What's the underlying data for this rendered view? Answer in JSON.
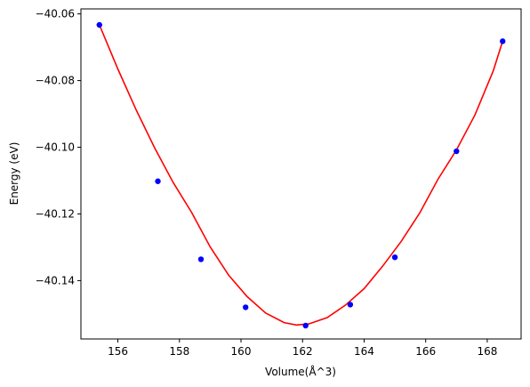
{
  "chart_data": {
    "type": "scatter",
    "xlabel": "Volume(Å^3)",
    "ylabel": "Energy (eV)",
    "xlim": [
      154.8,
      169.1
    ],
    "ylim": [
      -40.1575,
      -40.0585
    ],
    "xticks": [
      156,
      158,
      160,
      162,
      164,
      166,
      168
    ],
    "yticks": [
      -40.14,
      -40.12,
      -40.1,
      -40.08,
      -40.06
    ],
    "grid": false,
    "series": [
      {
        "kind": "points",
        "color": "#0000ff",
        "x": [
          155.4,
          157.3,
          158.7,
          160.15,
          162.1,
          163.55,
          165.0,
          167.0,
          168.5
        ],
        "y": [
          -40.0633,
          -40.1102,
          -40.1336,
          -40.148,
          -40.1535,
          -40.1472,
          -40.133,
          -40.1012,
          -40.0682
        ]
      },
      {
        "kind": "fit-line",
        "color": "#ff0000",
        "x": [
          155.4,
          156.0,
          156.6,
          157.2,
          157.8,
          158.4,
          159.0,
          159.6,
          160.2,
          160.8,
          161.4,
          161.8,
          162.2,
          162.8,
          163.4,
          164.0,
          164.6,
          165.2,
          165.8,
          166.4,
          167.0,
          167.6,
          168.2,
          168.5
        ],
        "y": [
          -40.0633,
          -40.0765,
          -40.0889,
          -40.1003,
          -40.1106,
          -40.1196,
          -40.1299,
          -40.1384,
          -40.1448,
          -40.1497,
          -40.1526,
          -40.1533,
          -40.153,
          -40.1511,
          -40.1473,
          -40.1424,
          -40.1357,
          -40.1283,
          -40.1198,
          -40.1096,
          -40.1008,
          -40.0903,
          -40.077,
          -40.0682
        ]
      }
    ]
  }
}
